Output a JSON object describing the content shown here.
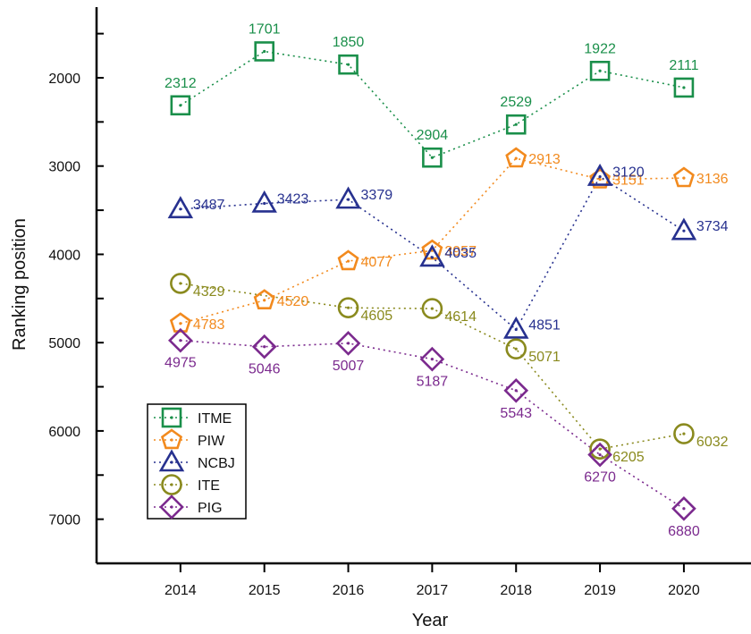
{
  "chart_data": {
    "type": "line",
    "title": "",
    "xlabel": "Year",
    "ylabel": "Ranking position",
    "y_reversed": true,
    "ylim": [
      1200,
      7500
    ],
    "xlim": [
      2013,
      2020.8
    ],
    "grid": false,
    "legend_position": "bottom-left",
    "x": [
      2014,
      2015,
      2016,
      2017,
      2018,
      2019,
      2020
    ],
    "x_tick_labels": [
      "2014",
      "2015",
      "2016",
      "2017",
      "2018",
      "2019",
      "2020"
    ],
    "y_tick_values": [
      2000,
      3000,
      4000,
      5000,
      6000,
      7000
    ],
    "y_tick_labels": [
      "2000",
      "3000",
      "4000",
      "5000",
      "6000",
      "7000"
    ],
    "series": [
      {
        "name": "ITME",
        "marker": "square",
        "color": "#1a8f4a",
        "values": [
          2312,
          1701,
          1850,
          2904,
          2529,
          1922,
          2111
        ],
        "labels": [
          "2312",
          "1701",
          "1850",
          "2904",
          "2529",
          "1922",
          "2111"
        ]
      },
      {
        "name": "PIW",
        "marker": "pentagon",
        "color": "#f28a1e",
        "values": [
          4783,
          4520,
          4077,
          3957,
          2913,
          3151,
          3136
        ],
        "labels": [
          "4783",
          "4520",
          "4077",
          "3957",
          "2913",
          "3151",
          "3136"
        ]
      },
      {
        "name": "NCBJ",
        "marker": "triangle",
        "color": "#27318f",
        "values": [
          3487,
          3423,
          3379,
          4035,
          4851,
          3120,
          3734
        ],
        "labels": [
          "3487",
          "3423",
          "3379",
          "4035",
          "4851",
          "3120",
          "3734"
        ]
      },
      {
        "name": "ITE",
        "marker": "circle",
        "color": "#8a8a1e",
        "values": [
          4329,
          null,
          4605,
          4614,
          5071,
          6205,
          6032
        ],
        "labels": [
          "4329",
          "",
          "4605",
          "4614",
          "5071",
          "6205",
          "6032"
        ]
      },
      {
        "name": "PIG",
        "marker": "diamond",
        "color": "#7b2a8e",
        "values": [
          4975,
          5046,
          5007,
          5187,
          5543,
          6270,
          6880
        ],
        "labels": [
          "4975",
          "5046",
          "5007",
          "5187",
          "5543",
          "6270",
          "6880"
        ]
      }
    ]
  }
}
